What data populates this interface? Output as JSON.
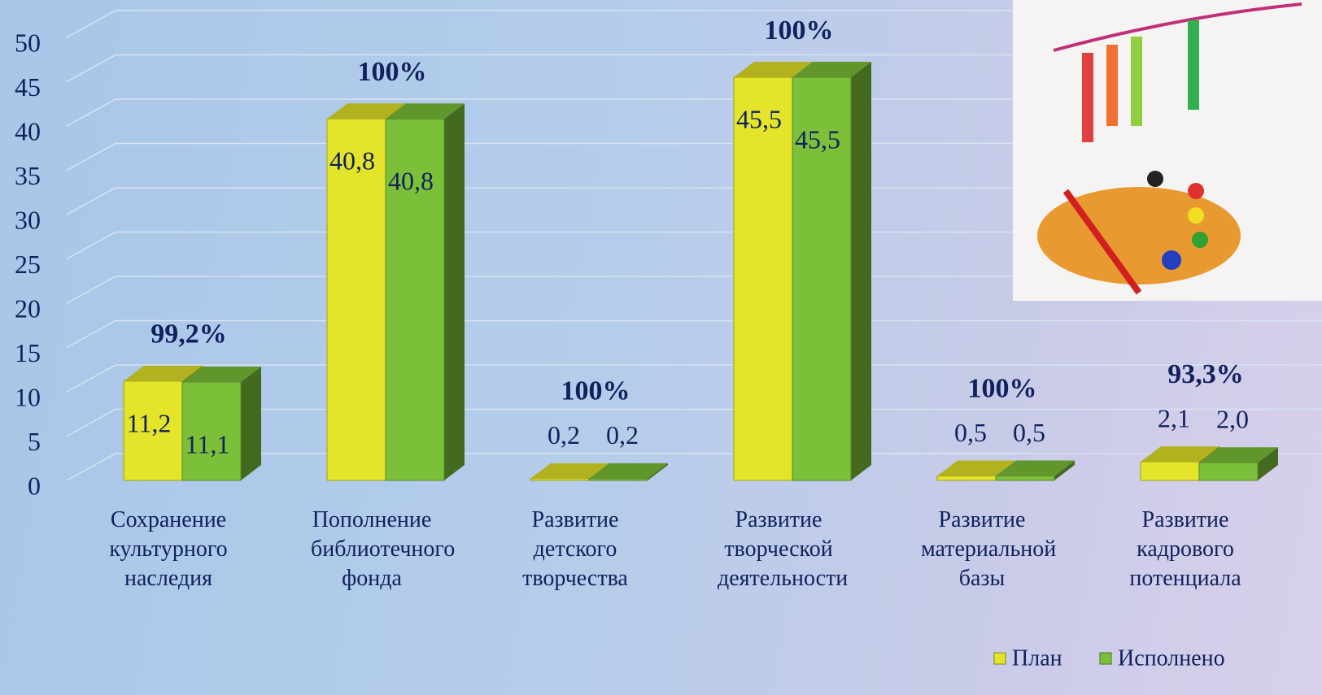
{
  "chart_data": {
    "type": "bar3d",
    "categories": [
      "Сохранение культурного наследия",
      "Пополнение библиотечного фонда",
      "Развитие детского творчества",
      "Развитие творческой деятельности",
      "Развитие материальной базы",
      "Развитие кадрового потенциала"
    ],
    "series": [
      {
        "name": "План",
        "color": "#e4e42a",
        "values": [
          11.2,
          40.8,
          0.2,
          45.5,
          0.5,
          2.1
        ],
        "value_labels": [
          "11,2",
          "40,8",
          "0,2",
          "45,5",
          "0,5",
          "2,1"
        ]
      },
      {
        "name": "Исполнено",
        "color": "#7cc03a",
        "values": [
          11.1,
          40.8,
          0.2,
          45.5,
          0.5,
          2.0
        ],
        "value_labels": [
          "11,1",
          "40,8",
          "0,2",
          "45,5",
          "0,5",
          "2,0"
        ]
      }
    ],
    "annotations": [
      "99,2%",
      "100%",
      "100%",
      "100%",
      "100%",
      "93,3%"
    ],
    "ylim": [
      0,
      50
    ],
    "yticks": [
      0,
      5,
      10,
      15,
      20,
      25,
      30,
      35,
      40,
      45,
      50
    ],
    "grid": true,
    "legend": "bottom-right"
  }
}
